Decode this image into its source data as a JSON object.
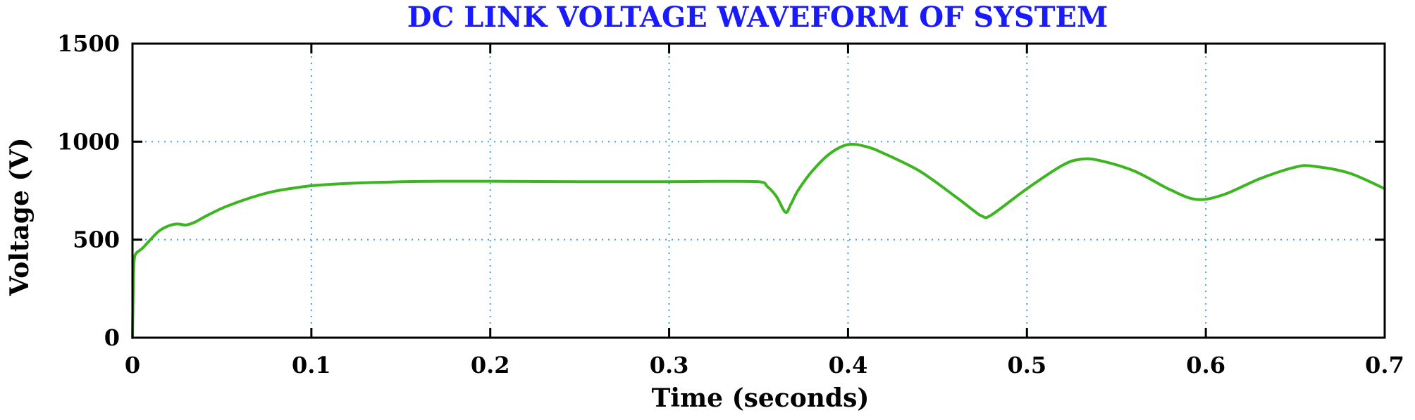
{
  "chart_data": {
    "type": "line",
    "title": "DC LINK VOLTAGE WAVEFORM OF SYSTEM",
    "title_color": "#1a1aff",
    "xlabel": "Time (seconds)",
    "ylabel": "Voltage (V)",
    "xlim": [
      0,
      0.7
    ],
    "ylim": [
      0,
      1500
    ],
    "xticks": [
      0,
      0.1,
      0.2,
      0.3,
      0.4,
      0.5,
      0.6,
      0.7
    ],
    "xtick_labels": [
      "0",
      "0.1",
      "0.2",
      "0.3",
      "0.4",
      "0.5",
      "0.6",
      "0.7"
    ],
    "yticks": [
      0,
      500,
      1000,
      1500
    ],
    "ytick_labels": [
      "0",
      "500",
      "1000",
      "1500"
    ],
    "grid": true,
    "series": [
      {
        "color": "#3cb521",
        "x": [
          0,
          0.0005,
          0.001,
          0.002,
          0.004,
          0.006,
          0.01,
          0.015,
          0.02,
          0.025,
          0.03,
          0.035,
          0.04,
          0.05,
          0.06,
          0.07,
          0.08,
          0.09,
          0.1,
          0.11,
          0.12,
          0.14,
          0.16,
          0.18,
          0.2,
          0.22,
          0.25,
          0.3,
          0.35,
          0.355,
          0.36,
          0.365,
          0.368,
          0.372,
          0.38,
          0.39,
          0.4,
          0.41,
          0.42,
          0.44,
          0.46,
          0.47,
          0.475,
          0.48,
          0.5,
          0.52,
          0.53,
          0.54,
          0.56,
          0.58,
          0.595,
          0.61,
          0.63,
          0.65,
          0.66,
          0.68,
          0.7
        ],
        "y": [
          0,
          300,
          400,
          430,
          445,
          460,
          500,
          545,
          570,
          580,
          575,
          590,
          615,
          660,
          695,
          725,
          748,
          763,
          775,
          782,
          787,
          793,
          797,
          798,
          798,
          797,
          796,
          796,
          796,
          770,
          720,
          640,
          680,
          750,
          850,
          940,
          985,
          975,
          940,
          850,
          720,
          650,
          620,
          625,
          760,
          880,
          910,
          905,
          850,
          755,
          705,
          730,
          810,
          870,
          875,
          840,
          760
        ]
      }
    ]
  }
}
